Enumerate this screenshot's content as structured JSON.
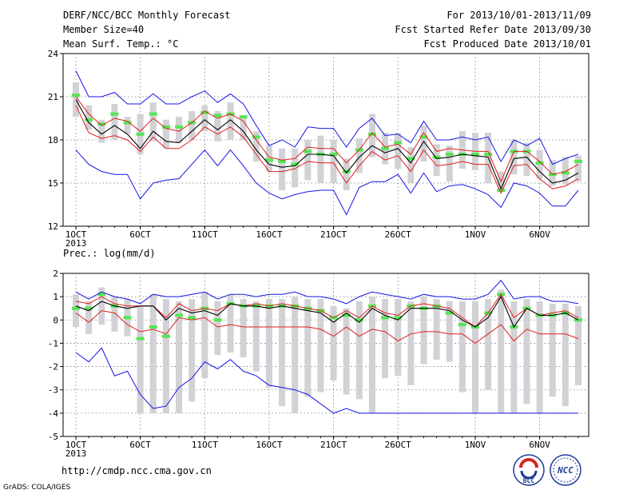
{
  "header": {
    "title": "DERF/NCC/BCC Monthly Forecast",
    "member_size": "Member Size=40",
    "variable": "Mean Surf. Temp.: °C",
    "forecast_period": "For 2013/10/01-2013/11/09",
    "start_date": "Fcst Started Refer Date 2013/09/30",
    "produced_date": "Fcst Produced Date 2013/10/01"
  },
  "precip_label": "Prec.: log(mm/d)",
  "footer": {
    "url": "http://cmdp.ncc.cma.gov.cn",
    "grads": "GrADS: COLA/IGES",
    "logo1_text": "BCC",
    "logo2_text": "NCC"
  },
  "colors": {
    "upper": "#1414e6",
    "lower": "#1414e6",
    "red": "#e11e1e",
    "median": "#000000",
    "box": "#d2d2d6",
    "member": "#55e655"
  },
  "chart_data": [
    {
      "type": "line",
      "name": "Mean Surf. Temp.",
      "ylim": [
        12,
        24
      ],
      "yticks": [
        12,
        15,
        18,
        21,
        24
      ],
      "xtick_labels": [
        "1OCT\n2013",
        "6OCT",
        "11OCT",
        "16OCT",
        "21OCT",
        "26OCT",
        "1NOV",
        "6NOV"
      ],
      "xtick_days": [
        1,
        6,
        11,
        16,
        21,
        26,
        32,
        37
      ],
      "days": [
        1,
        2,
        3,
        4,
        5,
        6,
        7,
        8,
        9,
        10,
        11,
        12,
        13,
        14,
        15,
        16,
        17,
        18,
        19,
        20,
        21,
        22,
        23,
        24,
        25,
        26,
        27,
        28,
        29,
        30,
        31,
        32,
        33,
        34,
        35,
        36,
        37,
        38,
        39,
        40
      ],
      "series": {
        "max": [
          22.8,
          21.0,
          21.0,
          21.3,
          20.5,
          20.5,
          21.2,
          20.5,
          20.5,
          21.0,
          21.4,
          20.6,
          21.2,
          20.5,
          19.0,
          17.6,
          18.0,
          17.5,
          18.9,
          18.8,
          18.8,
          17.5,
          18.8,
          19.5,
          18.3,
          18.4,
          17.8,
          19.3,
          18.0,
          18.0,
          18.2,
          18.0,
          18.2,
          16.5,
          18.0,
          17.6,
          18.1,
          16.3,
          16.7,
          17.0
        ],
        "upper": [
          21.0,
          19.8,
          19.0,
          19.5,
          19.3,
          18.6,
          19.5,
          18.8,
          18.6,
          19.2,
          20.0,
          19.5,
          19.8,
          19.3,
          18.0,
          16.8,
          16.6,
          16.7,
          17.5,
          17.4,
          17.4,
          16.4,
          17.3,
          18.5,
          17.5,
          17.7,
          17.0,
          18.5,
          17.2,
          17.4,
          17.3,
          17.2,
          17.2,
          15.1,
          17.2,
          17.2,
          16.5,
          15.6,
          15.8,
          16.3
        ],
        "median": [
          20.8,
          19.2,
          18.4,
          19.0,
          18.4,
          17.4,
          18.6,
          17.9,
          17.8,
          18.6,
          19.4,
          18.7,
          19.4,
          18.6,
          17.3,
          16.3,
          16.1,
          16.2,
          17.0,
          17.0,
          16.9,
          15.7,
          16.8,
          17.6,
          17.1,
          17.4,
          16.4,
          17.9,
          16.7,
          16.8,
          17.0,
          16.9,
          16.8,
          14.6,
          16.7,
          16.8,
          15.8,
          15.0,
          15.2,
          15.7
        ],
        "lower": [
          20.4,
          18.5,
          18.1,
          18.3,
          18.0,
          17.2,
          18.2,
          17.4,
          17.4,
          18.0,
          18.9,
          18.4,
          18.9,
          18.2,
          17.0,
          15.8,
          15.8,
          16.0,
          16.5,
          16.4,
          16.4,
          15.0,
          16.2,
          17.2,
          16.6,
          16.9,
          15.8,
          17.3,
          16.2,
          16.3,
          16.5,
          16.3,
          16.3,
          14.3,
          16.2,
          16.3,
          15.3,
          14.6,
          14.8,
          15.3
        ],
        "min": [
          17.3,
          16.3,
          15.8,
          15.6,
          15.6,
          13.9,
          15.0,
          15.2,
          15.3,
          16.3,
          17.3,
          16.2,
          17.3,
          16.2,
          15.0,
          14.3,
          13.9,
          14.2,
          14.4,
          14.5,
          14.5,
          12.8,
          14.7,
          15.1,
          15.1,
          15.6,
          14.3,
          15.7,
          14.4,
          14.8,
          14.9,
          14.6,
          14.2,
          13.3,
          15.0,
          14.8,
          14.3,
          13.4,
          13.4,
          14.5
        ],
        "box_low": [
          19.6,
          18.7,
          17.8,
          18.0,
          18.4,
          17.0,
          17.9,
          17.4,
          17.8,
          18.0,
          18.6,
          17.9,
          18.0,
          18.0,
          16.5,
          15.8,
          14.5,
          14.7,
          15.2,
          15.0,
          15.0,
          14.5,
          15.7,
          16.8,
          16.3,
          16.0,
          15.0,
          16.5,
          15.5,
          15.1,
          16.0,
          15.9,
          15.0,
          14.4,
          15.6,
          15.5,
          15.3,
          14.8,
          14.9,
          15.1
        ],
        "box_high": [
          22.0,
          20.4,
          19.4,
          20.5,
          19.6,
          19.8,
          20.6,
          19.4,
          19.6,
          20.0,
          20.4,
          20.0,
          20.6,
          19.6,
          18.6,
          17.6,
          17.4,
          17.4,
          18.0,
          18.3,
          18.0,
          16.7,
          18.1,
          19.8,
          18.5,
          18.5,
          17.5,
          19.0,
          17.7,
          17.6,
          18.6,
          18.5,
          18.5,
          15.8,
          18.0,
          17.8,
          17.3,
          16.6,
          16.8,
          16.9
        ],
        "member": [
          21.1,
          19.4,
          19.1,
          19.8,
          19.2,
          18.4,
          19.8,
          18.9,
          18.9,
          19.2,
          19.9,
          19.7,
          19.8,
          19.6,
          18.2,
          16.6,
          16.5,
          16.3,
          17.2,
          17.0,
          17.0,
          15.8,
          17.3,
          18.4,
          17.4,
          17.8,
          16.7,
          18.2,
          16.8,
          17.0,
          17.0,
          17.0,
          17.0,
          14.5,
          17.2,
          17.2,
          16.4,
          15.6,
          15.7,
          16.5
        ]
      }
    },
    {
      "type": "line",
      "name": "Prec.: log(mm/d)",
      "ylim": [
        -5,
        2
      ],
      "yticks": [
        -5,
        -4,
        -3,
        -2,
        -1,
        0,
        1,
        2
      ],
      "xtick_labels": [
        "1OCT\n2013",
        "6OCT",
        "11OCT",
        "16OCT",
        "21OCT",
        "26OCT",
        "1NOV",
        "6NOV"
      ],
      "xtick_days": [
        1,
        6,
        11,
        16,
        21,
        26,
        32,
        37
      ],
      "days": [
        1,
        2,
        3,
        4,
        5,
        6,
        7,
        8,
        9,
        10,
        11,
        12,
        13,
        14,
        15,
        16,
        17,
        18,
        19,
        20,
        21,
        22,
        23,
        24,
        25,
        26,
        27,
        28,
        29,
        30,
        31,
        32,
        33,
        34,
        35,
        36,
        37,
        38,
        39,
        40
      ],
      "series": {
        "max": [
          1.2,
          0.9,
          1.2,
          1.0,
          0.9,
          0.7,
          1.1,
          1.0,
          1.0,
          1.1,
          1.2,
          0.9,
          1.1,
          1.1,
          1.0,
          1.1,
          1.1,
          1.2,
          1.0,
          1.0,
          0.9,
          0.7,
          1.0,
          1.2,
          1.1,
          1.0,
          0.9,
          1.1,
          1.0,
          1.0,
          0.9,
          0.9,
          1.1,
          1.7,
          0.9,
          1.0,
          1.0,
          0.8,
          0.8,
          0.7
        ],
        "upper": [
          0.8,
          0.7,
          1.0,
          0.7,
          0.6,
          0.6,
          0.6,
          0.1,
          0.7,
          0.4,
          0.5,
          0.4,
          0.7,
          0.6,
          0.7,
          0.6,
          0.7,
          0.6,
          0.5,
          0.4,
          0.1,
          0.4,
          0.1,
          0.6,
          0.3,
          0.2,
          0.6,
          0.7,
          0.6,
          0.5,
          0.1,
          -0.3,
          0.3,
          1.1,
          0.1,
          0.5,
          0.2,
          0.3,
          0.4,
          0.1
        ],
        "median": [
          0.6,
          0.4,
          0.8,
          0.6,
          0.5,
          0.6,
          0.6,
          0.0,
          0.5,
          0.3,
          0.4,
          0.2,
          0.7,
          0.6,
          0.6,
          0.5,
          0.6,
          0.5,
          0.4,
          0.3,
          -0.1,
          0.3,
          -0.1,
          0.5,
          0.2,
          0.0,
          0.5,
          0.5,
          0.5,
          0.4,
          0.0,
          -0.3,
          0.1,
          1.0,
          -0.3,
          0.5,
          0.2,
          0.2,
          0.3,
          0.0
        ],
        "lower": [
          0.3,
          -0.1,
          0.4,
          0.3,
          -0.2,
          -0.5,
          -0.4,
          -0.6,
          0.1,
          0.0,
          0.1,
          -0.3,
          -0.2,
          -0.3,
          -0.3,
          -0.3,
          -0.3,
          -0.3,
          -0.3,
          -0.4,
          -0.7,
          -0.3,
          -0.7,
          -0.4,
          -0.5,
          -0.9,
          -0.6,
          -0.5,
          -0.5,
          -0.6,
          -0.6,
          -1.0,
          -0.6,
          -0.2,
          -0.9,
          -0.4,
          -0.6,
          -0.6,
          -0.6,
          -0.8
        ],
        "min": [
          -1.4,
          -1.8,
          -1.2,
          -2.4,
          -2.2,
          -3.2,
          -3.8,
          -3.7,
          -2.9,
          -2.5,
          -1.8,
          -2.1,
          -1.7,
          -2.2,
          -2.4,
          -2.8,
          -2.9,
          -3.0,
          -3.2,
          -3.6,
          -4.0,
          -3.8,
          -4.0,
          -4.0,
          -4.0,
          -4.0,
          -4.0,
          -4.0,
          -4.0,
          -4.0,
          -4.0,
          -4.0,
          -4.0,
          -4.0,
          -4.0,
          -4.0,
          -4.0,
          -4.0,
          -4.0,
          -4.0
        ],
        "box_low": [
          -0.3,
          -0.6,
          -0.2,
          -0.5,
          -0.7,
          -4.0,
          -4.0,
          -4.0,
          -4.0,
          -3.5,
          -2.5,
          -1.5,
          -1.4,
          -1.6,
          -2.2,
          -2.9,
          -3.7,
          -4.0,
          -3.3,
          -3.1,
          -2.6,
          -3.2,
          -3.4,
          -4.0,
          -2.5,
          -2.4,
          -2.8,
          -1.9,
          -1.7,
          -1.8,
          -3.1,
          -4.0,
          -3.0,
          -4.0,
          -4.0,
          -3.6,
          -4.0,
          -3.3,
          -3.7,
          -2.8
        ],
        "box_high": [
          1.1,
          0.8,
          1.4,
          1.0,
          0.9,
          0.6,
          1.1,
          0.9,
          0.8,
          0.9,
          1.2,
          0.8,
          1.1,
          0.9,
          0.8,
          0.9,
          0.9,
          1.0,
          0.9,
          0.9,
          0.6,
          0.5,
          0.8,
          1.0,
          0.9,
          0.9,
          0.8,
          1.0,
          0.9,
          0.8,
          0.8,
          0.8,
          0.9,
          1.3,
          0.8,
          0.9,
          0.8,
          0.7,
          0.7,
          0.6
        ],
        "member": [
          0.5,
          0.5,
          1.1,
          0.6,
          0.1,
          -0.8,
          -0.3,
          -0.7,
          0.2,
          0.1,
          0.5,
          0.0,
          0.7,
          0.6,
          0.6,
          0.6,
          0.6,
          0.6,
          0.5,
          0.4,
          0.1,
          0.2,
          0.0,
          0.6,
          0.1,
          0.1,
          0.6,
          0.5,
          0.6,
          0.3,
          -0.2,
          -0.3,
          0.3,
          1.1,
          -0.3,
          0.5,
          0.2,
          0.2,
          0.3,
          0.0
        ]
      }
    }
  ]
}
